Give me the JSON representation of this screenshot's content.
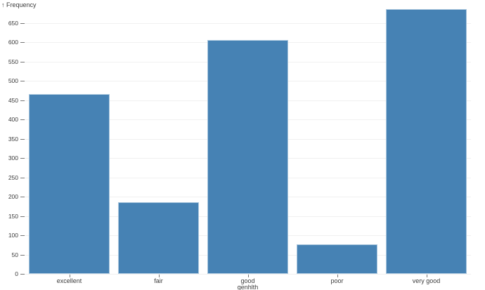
{
  "chart_data": {
    "type": "bar",
    "title": "",
    "xlabel": "genhlth",
    "ylabel": "Frequency",
    "ylabel_display": "↑ Frequency",
    "categories": [
      "excellent",
      "fair",
      "good",
      "poor",
      "very good"
    ],
    "values": [
      467,
      186,
      607,
      76,
      686
    ],
    "ylim": [
      0,
      690
    ],
    "yticks": [
      0,
      50,
      100,
      150,
      200,
      250,
      300,
      350,
      400,
      450,
      500,
      550,
      600,
      650
    ],
    "grid": true,
    "legend": "none",
    "colors": {
      "bar_fill": "#4682b4",
      "bar_edge": "#aac7de",
      "gridline": "#f0f0f0",
      "tick": "#767676",
      "text": "#3b3b3b"
    }
  }
}
